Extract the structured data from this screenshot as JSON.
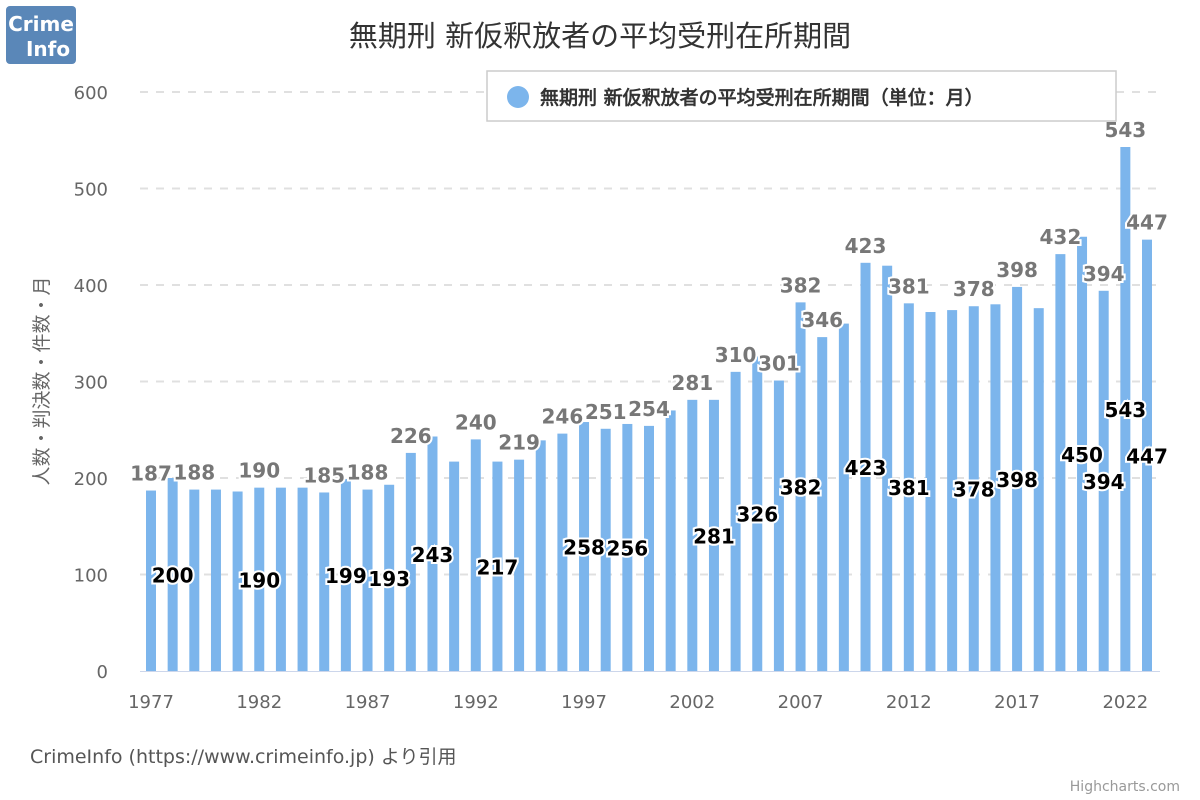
{
  "logo": {
    "text": "Crime Info",
    "color": "#5a87b8"
  },
  "credit": "CrimeInfo (https://www.crimeinfo.jp) より引用",
  "highcharts_credit": "Highcharts.com",
  "chart_data": {
    "type": "bar",
    "title": "無期刑 新仮釈放者の平均受刑在所期間",
    "ylabel": "人数・判決数・件数・月",
    "xlabel": "",
    "ylim": [
      0,
      600
    ],
    "yticks": [
      0,
      100,
      200,
      300,
      400,
      500,
      600
    ],
    "xtick_labels": [
      "1977",
      "1982",
      "1987",
      "1992",
      "1997",
      "2002",
      "2007",
      "2012",
      "2017",
      "2022"
    ],
    "grid": true,
    "legend_position": "top-right",
    "bar_color": "#7cb5ec",
    "categories": [
      1977,
      1978,
      1979,
      1980,
      1981,
      1982,
      1983,
      1984,
      1985,
      1986,
      1987,
      1988,
      1989,
      1990,
      1991,
      1992,
      1993,
      1994,
      1995,
      1996,
      1997,
      1998,
      1999,
      2000,
      2001,
      2002,
      2003,
      2004,
      2005,
      2006,
      2007,
      2008,
      2009,
      2010,
      2011,
      2012,
      2013,
      2014,
      2015,
      2016,
      2017,
      2018,
      2019,
      2020,
      2021,
      2022,
      2023
    ],
    "series": [
      {
        "name": "無期刑 新仮釈放者の平均受刑在所期間（単位：月）",
        "values": [
          187,
          200,
          188,
          188,
          186,
          190,
          190,
          190,
          185,
          199,
          188,
          193,
          226,
          243,
          217,
          240,
          217,
          219,
          239,
          246,
          258,
          251,
          256,
          254,
          270,
          281,
          281,
          310,
          326,
          301,
          382,
          346,
          360,
          423,
          420,
          381,
          372,
          374,
          378,
          380,
          398,
          376,
          432,
          450,
          394,
          543,
          447
        ]
      }
    ],
    "top_labels": {
      "1977": 187,
      "1979": 188,
      "1982": 190,
      "1985": 185,
      "1987": 188,
      "1989": 226,
      "1992": 240,
      "1994": 219,
      "1996": 246,
      "1998": 251,
      "2000": 254,
      "2002": 281,
      "2004": 310,
      "2006": 301,
      "2007": 382,
      "2008": 346,
      "2010": 423,
      "2012": 381,
      "2015": 378,
      "2017": 398,
      "2019": 432,
      "2021": 394,
      "2022": 543,
      "2023": 447
    },
    "inner_labels": {
      "1978": 200,
      "1982": 190,
      "1986": 199,
      "1988": 193,
      "1990": 243,
      "1993": 217,
      "1997": 258,
      "1999": 256,
      "2003": 281,
      "2005": 326,
      "2007": 382,
      "2010": 423,
      "2012": 381,
      "2015": 378,
      "2017": 398,
      "2020": 450,
      "2021": 394,
      "2022": 543,
      "2023": 447
    }
  }
}
